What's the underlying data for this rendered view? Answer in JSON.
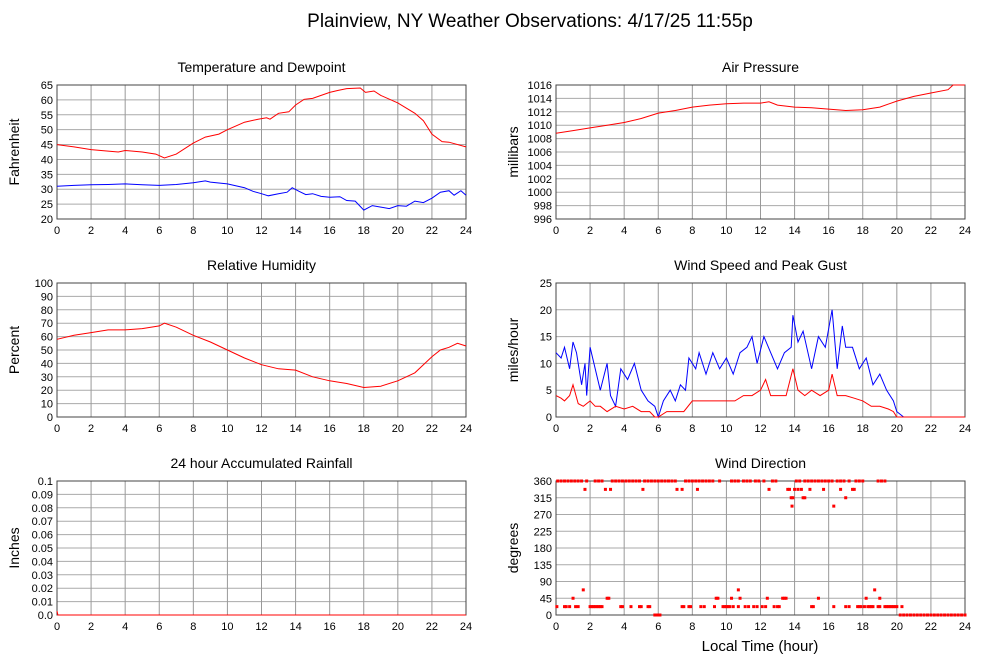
{
  "title": "Plainview, NY Weather Observations: 4/17/25 11:55p",
  "xlabel_bottom": "Local Time (hour)",
  "chart_data": [
    {
      "id": "temp",
      "type": "line",
      "title": "Temperature and Dewpoint",
      "ylabel": "Fahrenheit",
      "xlim": [
        0,
        24
      ],
      "ylim": [
        20,
        65
      ],
      "xticks": [
        "0",
        "2",
        "4",
        "6",
        "8",
        "10",
        "12",
        "14",
        "16",
        "18",
        "20",
        "22",
        "24"
      ],
      "yticks": [
        "20",
        "25",
        "30",
        "35",
        "40",
        "45",
        "50",
        "55",
        "60",
        "65"
      ],
      "grid": true,
      "series": [
        {
          "color": "#ff0000",
          "x": [
            0,
            1,
            2,
            3,
            3.6,
            4,
            5,
            5.8,
            6.3,
            7,
            8,
            8.7,
            9.5,
            10,
            11,
            11.8,
            12.3,
            12.5,
            13,
            13.6,
            14,
            14.5,
            15,
            16,
            16.5,
            17,
            17.8,
            18.1,
            18.6,
            19,
            20,
            21,
            21.5,
            22,
            22.6,
            23,
            24
          ],
          "y": [
            45,
            44.2,
            43.3,
            42.8,
            42.5,
            43,
            42.5,
            41.8,
            40.5,
            41.8,
            45.5,
            47.5,
            48.5,
            50,
            52.5,
            53.5,
            54,
            53.5,
            55.5,
            56,
            58.3,
            60.2,
            60.5,
            62.5,
            63.2,
            63.8,
            64,
            62.5,
            63,
            61.5,
            59,
            55.5,
            53,
            48.5,
            46,
            45.8,
            44.2
          ]
        },
        {
          "color": "#0000ff",
          "x": [
            0,
            1,
            2,
            3,
            4,
            5,
            6,
            7,
            8,
            8.7,
            9,
            10,
            11,
            11.5,
            12,
            12.4,
            13,
            13.5,
            13.8,
            14.2,
            14.6,
            15,
            15.5,
            16,
            16.6,
            17,
            17.5,
            18,
            18.5,
            19,
            19.5,
            20,
            20.5,
            21,
            21.5,
            22,
            22.5,
            23,
            23.3,
            23.7,
            24
          ],
          "y": [
            31,
            31.3,
            31.5,
            31.6,
            31.8,
            31.5,
            31.3,
            31.6,
            32.2,
            32.8,
            32.4,
            31.8,
            30.5,
            29.3,
            28.5,
            27.8,
            28.5,
            29,
            30.5,
            29.3,
            28.2,
            28.5,
            27.6,
            27.3,
            27.5,
            26.2,
            26,
            23,
            24.5,
            24,
            23.5,
            24.5,
            24.3,
            26,
            25.5,
            27,
            29,
            29.5,
            28,
            29.5,
            28
          ]
        }
      ]
    },
    {
      "id": "pressure",
      "type": "line",
      "title": "Air Pressure",
      "ylabel": "millibars",
      "xlim": [
        0,
        24
      ],
      "ylim": [
        996,
        1016
      ],
      "xticks": [
        "0",
        "2",
        "4",
        "6",
        "8",
        "10",
        "12",
        "14",
        "16",
        "18",
        "20",
        "22",
        "24"
      ],
      "yticks": [
        "996",
        "998",
        "1000",
        "1002",
        "1004",
        "1006",
        "1008",
        "1010",
        "1012",
        "1014",
        "1016"
      ],
      "grid": true,
      "series": [
        {
          "color": "#ff0000",
          "x": [
            0,
            1,
            2,
            3,
            4,
            5,
            6,
            7,
            8,
            9,
            10,
            11,
            12,
            12.5,
            13,
            14,
            15,
            16,
            17,
            18,
            19,
            20,
            21,
            22,
            23,
            23.3,
            24
          ],
          "y": [
            1008.8,
            1009.2,
            1009.6,
            1010,
            1010.4,
            1011,
            1011.8,
            1012.2,
            1012.7,
            1013,
            1013.2,
            1013.3,
            1013.3,
            1013.5,
            1013,
            1012.7,
            1012.6,
            1012.4,
            1012.2,
            1012.3,
            1012.7,
            1013.6,
            1014.3,
            1014.8,
            1015.3,
            1016,
            1016
          ]
        }
      ]
    },
    {
      "id": "humidity",
      "type": "line",
      "title": "Relative Humidity",
      "ylabel": "Percent",
      "xlim": [
        0,
        24
      ],
      "ylim": [
        0,
        100
      ],
      "xticks": [
        "0",
        "2",
        "4",
        "6",
        "8",
        "10",
        "12",
        "14",
        "16",
        "18",
        "20",
        "22",
        "24"
      ],
      "yticks": [
        "0",
        "10",
        "20",
        "30",
        "40",
        "50",
        "60",
        "70",
        "80",
        "90",
        "100"
      ],
      "grid": true,
      "series": [
        {
          "color": "#ff0000",
          "x": [
            0,
            1,
            2,
            3,
            4,
            5,
            6,
            6.3,
            7,
            8,
            9,
            10,
            11,
            12,
            13,
            14,
            15,
            16,
            17,
            18,
            19,
            20,
            21,
            22,
            22.5,
            23,
            23.5,
            24
          ],
          "y": [
            58,
            61,
            63,
            65,
            65,
            66,
            68,
            70,
            67,
            61,
            56,
            50,
            44,
            39,
            36,
            35,
            30,
            27,
            25,
            22,
            23,
            27,
            33,
            45,
            50,
            52,
            55,
            53
          ]
        }
      ]
    },
    {
      "id": "wind",
      "type": "line",
      "title": "Wind Speed and Peak Gust",
      "ylabel": "miles/hour",
      "xlim": [
        0,
        24
      ],
      "ylim": [
        0,
        25
      ],
      "xticks": [
        "0",
        "2",
        "4",
        "6",
        "8",
        "10",
        "12",
        "14",
        "16",
        "18",
        "20",
        "22",
        "24"
      ],
      "yticks": [
        "0",
        "5",
        "10",
        "15",
        "20",
        "25"
      ],
      "grid": true,
      "series": [
        {
          "color": "#0000ff",
          "x": [
            0,
            0.3,
            0.5,
            0.8,
            1,
            1.2,
            1.5,
            1.7,
            1.8,
            2,
            2.3,
            2.6,
            3,
            3.2,
            3.5,
            3.8,
            4.2,
            4.6,
            5,
            5.4,
            5.8,
            6,
            6.3,
            6.7,
            7,
            7.3,
            7.6,
            7.8,
            8.2,
            8.4,
            8.8,
            9.2,
            9.6,
            10,
            10.4,
            10.8,
            11.2,
            11.5,
            11.8,
            12.2,
            12.6,
            13,
            13.4,
            13.8,
            13.9,
            14.2,
            14.5,
            15,
            15.4,
            15.8,
            16.2,
            16.5,
            16.8,
            17,
            17.4,
            17.8,
            18.2,
            18.6,
            19,
            19.4,
            19.8,
            20,
            20.4,
            21,
            24
          ],
          "y": [
            12,
            11,
            13,
            9,
            14,
            12,
            6,
            10,
            4,
            13,
            9,
            5,
            10,
            4,
            2,
            9,
            7,
            10,
            5,
            3,
            2,
            0,
            3,
            5,
            3,
            6,
            5,
            11,
            9,
            12,
            8,
            12,
            9,
            11,
            8,
            12,
            13,
            15,
            10,
            15,
            12,
            9,
            12,
            13,
            19,
            14,
            16,
            9,
            15,
            13,
            20,
            9,
            17,
            13,
            13,
            9,
            11,
            6,
            8,
            5,
            3,
            1,
            0,
            0,
            0
          ]
        },
        {
          "color": "#ff0000",
          "x": [
            0,
            0.3,
            0.5,
            0.8,
            1,
            1.3,
            1.6,
            2,
            2.3,
            2.6,
            3,
            3.5,
            4,
            4.5,
            5,
            5.5,
            5.8,
            6,
            6.5,
            7,
            7.5,
            8,
            8.5,
            9,
            9.5,
            10,
            10.5,
            11,
            11.5,
            12,
            12.3,
            12.6,
            13,
            13.5,
            13.9,
            14.2,
            14.6,
            15,
            15.5,
            16,
            16.2,
            16.5,
            17,
            17.5,
            18,
            18.5,
            19,
            19.5,
            19.8,
            20,
            24
          ],
          "y": [
            4,
            3.5,
            3,
            4,
            6,
            2.5,
            2,
            3,
            2,
            2,
            1,
            2,
            1.5,
            2,
            1,
            1,
            0,
            0,
            1,
            1,
            1,
            3,
            3,
            3,
            3,
            3,
            3,
            4,
            4,
            5,
            7,
            4,
            4,
            4,
            9,
            5,
            4,
            5,
            4,
            5,
            8,
            4,
            4,
            3.5,
            3,
            2,
            2,
            1.5,
            1,
            0,
            0
          ]
        }
      ]
    },
    {
      "id": "rain",
      "type": "line",
      "title": "24 hour Accumulated Rainfall",
      "ylabel": "Inches",
      "xlim": [
        0,
        24
      ],
      "ylim": [
        0,
        0.1
      ],
      "xticks": [
        "0",
        "2",
        "4",
        "6",
        "8",
        "10",
        "12",
        "14",
        "16",
        "18",
        "20",
        "22",
        "24"
      ],
      "yticks": [
        "0.0",
        "0.01",
        "0.02",
        "0.03",
        "0.04",
        "0.05",
        "0.06",
        "0.07",
        "0.08",
        "0.09",
        "0.1"
      ],
      "grid": true,
      "series": [
        {
          "color": "#ff0000",
          "x": [
            0,
            0.05,
            24
          ],
          "y": [
            0.003,
            0,
            0
          ]
        }
      ]
    },
    {
      "id": "direction",
      "type": "scatter",
      "title": "Wind Direction",
      "ylabel": "degrees",
      "xlim": [
        0,
        24
      ],
      "ylim": [
        0,
        360
      ],
      "xticks": [
        "0",
        "2",
        "4",
        "6",
        "8",
        "10",
        "12",
        "14",
        "16",
        "18",
        "20",
        "22",
        "24"
      ],
      "yticks": [
        "0",
        "45",
        "90",
        "135",
        "180",
        "225",
        "270",
        "315",
        "360"
      ],
      "grid": true,
      "color": "#ff0000",
      "points_by_direction": {
        "360": [
          0.1,
          0.3,
          0.5,
          0.7,
          0.9,
          1.1,
          1.3,
          1.5,
          1.8,
          2.3,
          2.5,
          2.7,
          3.3,
          3.5,
          3.7,
          3.9,
          4.1,
          4.3,
          4.5,
          4.7,
          4.9,
          5.2,
          5.4,
          5.6,
          5.8,
          6.0,
          6.2,
          6.4,
          6.6,
          6.8,
          7.0,
          7.6,
          7.8,
          8.0,
          8.2,
          8.4,
          8.6,
          8.8,
          9.0,
          9.2,
          9.6,
          10.3,
          10.5,
          10.7,
          11.0,
          11.2,
          11.4,
          11.7,
          11.9,
          12.2,
          12.7,
          12.9,
          14.1,
          14.3,
          14.6,
          14.8,
          15.0,
          15.2,
          15.4,
          15.6,
          15.8,
          16.0,
          16.2,
          16.5,
          16.7,
          16.9,
          17.2,
          17.6,
          17.8,
          18.0,
          18.9,
          19.1,
          19.3
        ],
        "337.5": [
          1.7,
          2.9,
          3.2,
          5.1,
          7.1,
          7.4,
          8.3,
          12.5,
          13.6,
          13.7,
          14.0,
          14.2,
          14.4,
          14.9,
          15.7,
          16.7,
          17.4,
          17.5
        ],
        "315": [
          13.8,
          13.9,
          14.5,
          14.6,
          17.0
        ],
        "292.5": [
          13.85,
          16.3
        ],
        "67.5": [
          1.6,
          10.7,
          18.7
        ],
        "45": [
          1.0,
          3.0,
          3.1,
          9.4,
          9.5,
          10.3,
          10.8,
          12.4,
          13.3,
          13.4,
          13.5,
          15.4,
          18.2,
          19.0
        ],
        "22.5": [
          0.05,
          0.5,
          0.6,
          0.8,
          1.15,
          1.3,
          2.0,
          2.1,
          2.2,
          2.3,
          2.4,
          2.5,
          2.6,
          2.7,
          3.8,
          3.9,
          4.4,
          4.9,
          5.0,
          5.4,
          5.5,
          7.4,
          7.5,
          7.8,
          7.9,
          8.5,
          8.7,
          9.3,
          9.8,
          9.9,
          10.0,
          10.1,
          10.2,
          10.4,
          10.7,
          11.1,
          11.3,
          11.6,
          11.8,
          12.1,
          12.3,
          12.8,
          13.0,
          13.1,
          15.0,
          15.1,
          16.3,
          17.0,
          17.2,
          17.7,
          17.8,
          17.9,
          18.1,
          18.3,
          18.4,
          18.5,
          18.6,
          18.9,
          19.0,
          19.3,
          19.4,
          19.5,
          19.6,
          19.7,
          19.8,
          19.9,
          20.0,
          20.3
        ],
        "0": [
          5.8,
          5.9,
          6.0,
          6.1,
          20.2,
          20.4,
          20.6,
          20.8,
          21.0,
          21.2,
          21.4,
          21.6,
          21.8,
          22.0,
          22.2,
          22.4,
          22.6,
          22.8,
          23.0,
          23.2,
          23.4,
          23.6,
          23.8,
          24.0
        ]
      }
    }
  ]
}
